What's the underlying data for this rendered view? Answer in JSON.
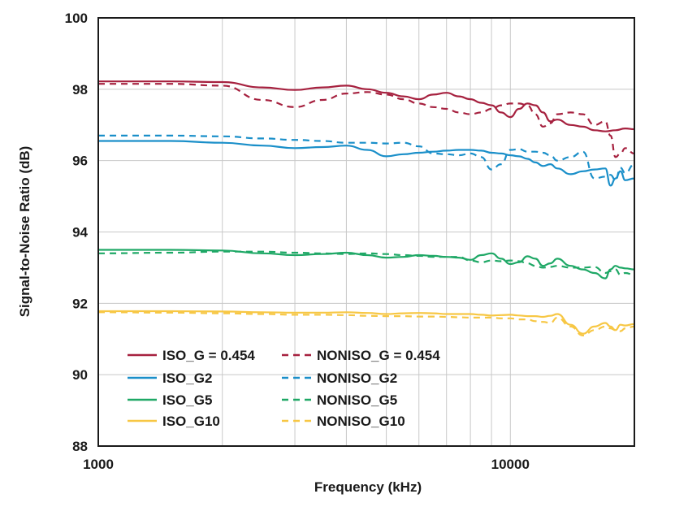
{
  "chart_data": {
    "type": "line",
    "title": "",
    "xlabel": "Frequency (kHz)",
    "ylabel": "Signal-to-Noise Ratio (dB)",
    "x_scale": "log",
    "xlim": [
      1000,
      20000
    ],
    "ylim": [
      88,
      100
    ],
    "x_tick_labels": [
      "1000",
      "10000"
    ],
    "y_tick_labels": [
      "88",
      "90",
      "92",
      "94",
      "96",
      "98",
      "100"
    ],
    "grid": true,
    "legend_placement": "bottom-left",
    "colors": {
      "red": "#a6213f",
      "blue": "#1a8fc9",
      "green": "#1fa866",
      "yellow": "#f7c744"
    },
    "series": [
      {
        "name": "ISO_G = 0.454",
        "color": "#a6213f",
        "style": "solid",
        "x": [
          1000,
          1500,
          2000,
          2500,
          3000,
          3500,
          4000,
          4500,
          5000,
          5500,
          6000,
          6500,
          7000,
          7500,
          8000,
          8500,
          9000,
          9500,
          10000,
          10500,
          11000,
          11500,
          12000,
          12500,
          13000,
          14000,
          15000,
          16000,
          17000,
          18000,
          19000,
          20000
        ],
        "y": [
          98.22,
          98.22,
          98.2,
          98.05,
          97.98,
          98.05,
          98.1,
          98.0,
          97.9,
          97.8,
          97.72,
          97.85,
          97.9,
          97.8,
          97.72,
          97.62,
          97.55,
          97.35,
          97.22,
          97.45,
          97.6,
          97.55,
          97.35,
          97.1,
          97.15,
          97.0,
          96.95,
          96.85,
          96.82,
          96.85,
          96.9,
          96.88
        ]
      },
      {
        "name": "NONISO_G = 0.454",
        "color": "#a6213f",
        "style": "dashed",
        "x": [
          1000,
          1500,
          2000,
          2500,
          3000,
          3500,
          4000,
          4500,
          5000,
          5500,
          6000,
          6500,
          7000,
          7500,
          8000,
          8500,
          9000,
          9500,
          10000,
          10500,
          11000,
          11500,
          12000,
          12500,
          13000,
          14000,
          15000,
          16000,
          17000,
          17500,
          18000,
          18500,
          19000,
          20000
        ],
        "y": [
          98.15,
          98.15,
          98.1,
          97.7,
          97.5,
          97.7,
          97.88,
          97.92,
          97.85,
          97.72,
          97.6,
          97.5,
          97.45,
          97.35,
          97.3,
          97.35,
          97.45,
          97.55,
          97.6,
          97.6,
          97.55,
          97.3,
          96.95,
          97.05,
          97.3,
          97.35,
          97.3,
          97.0,
          97.1,
          96.7,
          96.1,
          96.2,
          96.35,
          96.2
        ]
      },
      {
        "name": "ISO_G2",
        "color": "#1a8fc9",
        "style": "solid",
        "x": [
          1000,
          1500,
          2000,
          2500,
          3000,
          3500,
          4000,
          4500,
          5000,
          5500,
          6000,
          6500,
          7000,
          7500,
          8000,
          8500,
          9000,
          9500,
          10000,
          10500,
          11000,
          11500,
          12000,
          12500,
          13000,
          14000,
          15000,
          16000,
          17000,
          17500,
          18000,
          18500,
          19000,
          20000
        ],
        "y": [
          96.55,
          96.55,
          96.5,
          96.42,
          96.35,
          96.38,
          96.42,
          96.3,
          96.12,
          96.18,
          96.22,
          96.25,
          96.28,
          96.3,
          96.3,
          96.28,
          96.22,
          96.2,
          96.15,
          96.12,
          96.05,
          95.95,
          95.85,
          95.9,
          95.78,
          95.62,
          95.7,
          95.75,
          95.78,
          95.3,
          95.5,
          95.7,
          95.45,
          95.5
        ]
      },
      {
        "name": "NONISO_G2",
        "color": "#1a8fc9",
        "style": "dashed",
        "x": [
          1000,
          1500,
          2000,
          2500,
          3000,
          3500,
          4000,
          4500,
          5000,
          5500,
          6000,
          6500,
          7000,
          7500,
          8000,
          8500,
          9000,
          9500,
          10000,
          10500,
          11000,
          11500,
          12000,
          12500,
          13000,
          14000,
          15000,
          16000,
          17000,
          17500,
          18000,
          18500,
          19000,
          20000
        ],
        "y": [
          96.7,
          96.7,
          96.68,
          96.62,
          96.58,
          96.55,
          96.5,
          96.5,
          96.48,
          96.5,
          96.4,
          96.2,
          96.18,
          96.15,
          96.2,
          96.1,
          95.75,
          95.9,
          96.3,
          96.32,
          96.25,
          96.25,
          96.22,
          96.15,
          96.0,
          96.1,
          96.25,
          95.5,
          95.55,
          95.6,
          95.45,
          95.8,
          95.65,
          95.9
        ]
      },
      {
        "name": "ISO_G5",
        "color": "#1fa866",
        "style": "solid",
        "x": [
          1000,
          1500,
          2000,
          2500,
          3000,
          3500,
          4000,
          4500,
          5000,
          5500,
          6000,
          6500,
          7000,
          7500,
          8000,
          8500,
          9000,
          9500,
          10000,
          10500,
          11000,
          11500,
          12000,
          12500,
          13000,
          14000,
          15000,
          16000,
          17000,
          17500,
          18000,
          18500,
          19000,
          20000
        ],
        "y": [
          93.5,
          93.5,
          93.48,
          93.4,
          93.35,
          93.38,
          93.42,
          93.35,
          93.28,
          93.3,
          93.35,
          93.33,
          93.3,
          93.28,
          93.22,
          93.35,
          93.4,
          93.25,
          93.1,
          93.15,
          93.32,
          93.25,
          93.05,
          93.12,
          93.25,
          93.05,
          92.95,
          92.85,
          92.7,
          92.95,
          93.05,
          93.0,
          92.98,
          92.95
        ]
      },
      {
        "name": "NONISO_G5",
        "color": "#1fa866",
        "style": "dashed",
        "x": [
          1000,
          1500,
          2000,
          2500,
          3000,
          3500,
          4000,
          4500,
          5000,
          5500,
          6000,
          6500,
          7000,
          7500,
          8000,
          8500,
          9000,
          9500,
          10000,
          10500,
          11000,
          11500,
          12000,
          12500,
          13000,
          14000,
          15000,
          16000,
          17000,
          17500,
          18000,
          18500,
          19000,
          20000
        ],
        "y": [
          93.4,
          93.42,
          93.45,
          93.45,
          93.42,
          93.4,
          93.38,
          93.4,
          93.38,
          93.35,
          93.33,
          93.3,
          93.3,
          93.3,
          93.2,
          93.15,
          93.2,
          93.18,
          93.2,
          93.18,
          93.12,
          93.05,
          93.0,
          93.02,
          93.05,
          93.0,
          93.0,
          93.02,
          92.85,
          92.9,
          92.95,
          92.8,
          92.85,
          92.8
        ]
      },
      {
        "name": "ISO_G10",
        "color": "#f7c744",
        "style": "solid",
        "x": [
          1000,
          1500,
          2000,
          2500,
          3000,
          3500,
          4000,
          4500,
          5000,
          5500,
          6000,
          6500,
          7000,
          7500,
          8000,
          8500,
          9000,
          9500,
          10000,
          10500,
          11000,
          11500,
          12000,
          12500,
          13000,
          14000,
          15000,
          16000,
          17000,
          17500,
          18000,
          18500,
          19000,
          20000
        ],
        "y": [
          91.78,
          91.78,
          91.77,
          91.75,
          91.74,
          91.74,
          91.75,
          91.73,
          91.7,
          91.72,
          91.73,
          91.72,
          91.7,
          91.7,
          91.7,
          91.68,
          91.66,
          91.67,
          91.68,
          91.66,
          91.64,
          91.64,
          91.62,
          91.65,
          91.7,
          91.4,
          91.15,
          91.35,
          91.45,
          91.35,
          91.25,
          91.4,
          91.38,
          91.42
        ]
      },
      {
        "name": "NONISO_G10",
        "color": "#f7c744",
        "style": "dashed",
        "x": [
          1000,
          1500,
          2000,
          2500,
          3000,
          3500,
          4000,
          4500,
          5000,
          5500,
          6000,
          6500,
          7000,
          7500,
          8000,
          8500,
          9000,
          9500,
          10000,
          10500,
          11000,
          11500,
          12000,
          12500,
          13000,
          14000,
          15000,
          16000,
          17000,
          17500,
          18000,
          18500,
          19000,
          20000
        ],
        "y": [
          91.75,
          91.74,
          91.72,
          91.7,
          91.68,
          91.68,
          91.67,
          91.65,
          91.64,
          91.64,
          91.63,
          91.63,
          91.62,
          91.61,
          91.6,
          91.6,
          91.6,
          91.58,
          91.58,
          91.55,
          91.55,
          91.5,
          91.48,
          91.45,
          91.6,
          91.35,
          91.1,
          91.25,
          91.35,
          91.3,
          91.25,
          91.22,
          91.3,
          91.35
        ]
      }
    ]
  }
}
